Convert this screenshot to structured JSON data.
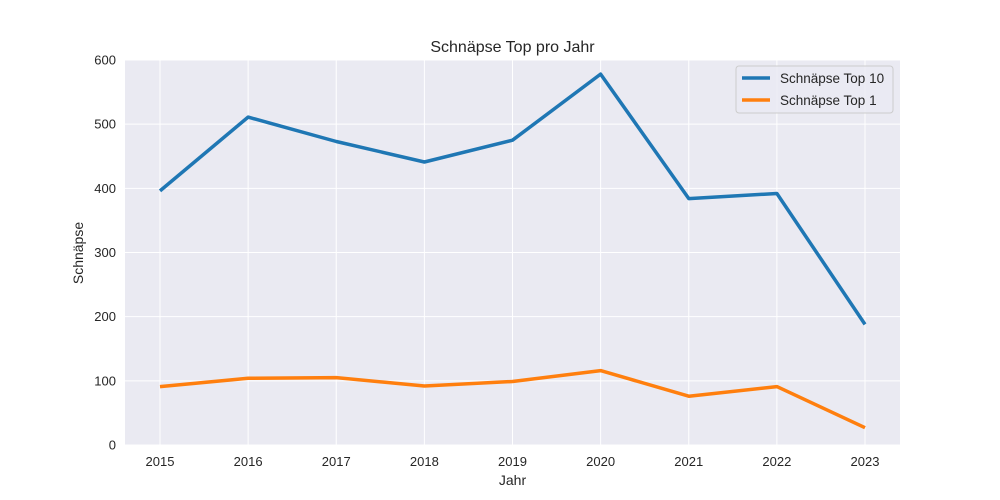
{
  "chart_data": {
    "type": "line",
    "title": "Schnäpse Top pro Jahr",
    "xlabel": "Jahr",
    "ylabel": "Schnäpse",
    "x": [
      "2015",
      "2016",
      "2017",
      "2018",
      "2019",
      "2020",
      "2021",
      "2022",
      "2023"
    ],
    "ylim": [
      0,
      600
    ],
    "yticks": [
      "0",
      "100",
      "200",
      "300",
      "400",
      "500",
      "600"
    ],
    "grid": true,
    "legend_position": "top-right",
    "series": [
      {
        "name": "Schnäpse Top 10",
        "color": "#1f77b4",
        "values": [
          396,
          511,
          473,
          441,
          475,
          578,
          384,
          392,
          188
        ]
      },
      {
        "name": "Schnäpse Top 1",
        "color": "#ff7f0e",
        "values": [
          91,
          104,
          105,
          92,
          99,
          116,
          76,
          91,
          27
        ]
      }
    ]
  }
}
